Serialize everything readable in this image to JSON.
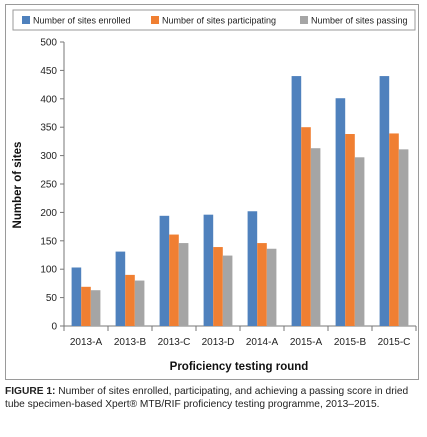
{
  "chart_data": {
    "type": "bar",
    "categories": [
      "2013-A",
      "2013-B",
      "2013-C",
      "2013-D",
      "2014-A",
      "2015-A",
      "2015-B",
      "2015-C"
    ],
    "series": [
      {
        "name": "Number of sites enrolled",
        "color": "#4f81bd",
        "values": [
          103,
          131,
          194,
          196,
          202,
          440,
          401,
          440
        ]
      },
      {
        "name": "Number of sites participating",
        "color": "#f07f32",
        "values": [
          69,
          90,
          161,
          139,
          146,
          350,
          338,
          339
        ]
      },
      {
        "name": "Number of sites passing",
        "color": "#a5a5a5",
        "values": [
          63,
          80,
          146,
          124,
          136,
          313,
          297,
          311
        ]
      }
    ],
    "xlabel": "Proficiency testing round",
    "ylabel": "Number of sites",
    "ylim": [
      0,
      500
    ],
    "yticks": [
      0,
      50,
      100,
      150,
      200,
      250,
      300,
      350,
      400,
      450,
      500
    ],
    "grid": false,
    "legend": "top"
  },
  "caption": {
    "label": "FIGURE 1:",
    "text": " Number of sites enrolled, participating, and achieving a passing score in dried tube specimen-based Xpert® MTB/RIF proficiency testing programme, 2013–2015."
  }
}
